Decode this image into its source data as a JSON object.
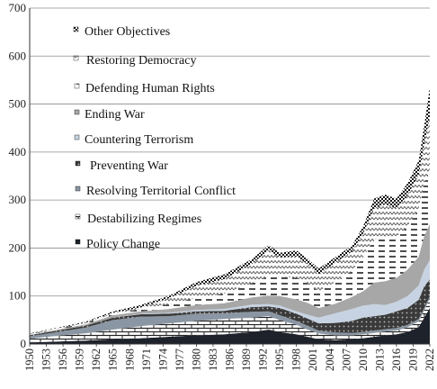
{
  "chart_data": {
    "type": "area",
    "stacked": true,
    "title": "",
    "xlabel": "",
    "ylabel": "",
    "ylim": [
      0,
      700
    ],
    "yticks": [
      0,
      100,
      200,
      300,
      400,
      500,
      600,
      700
    ],
    "xlim": [
      1950,
      2022
    ],
    "xticks": [
      1950,
      1953,
      1956,
      1959,
      1962,
      1965,
      1968,
      1971,
      1974,
      1977,
      1980,
      1983,
      1986,
      1989,
      1992,
      1995,
      1998,
      2001,
      2004,
      2007,
      2010,
      2013,
      2016,
      2019,
      2022
    ],
    "grid": "horizontal",
    "legend_position": "top-left inside",
    "x": [
      1950,
      1955,
      1960,
      1965,
      1970,
      1975,
      1980,
      1985,
      1990,
      1993,
      1995,
      1998,
      2000,
      2002,
      2005,
      2008,
      2010,
      2012,
      2014,
      2016,
      2018,
      2020,
      2021,
      2022
    ],
    "series": [
      {
        "name": "Policy Change",
        "color": "#1e222b",
        "pattern": "solid",
        "values": [
          3,
          5,
          7,
          10,
          12,
          15,
          18,
          20,
          25,
          30,
          25,
          20,
          15,
          10,
          8,
          10,
          12,
          15,
          18,
          20,
          25,
          35,
          55,
          75
        ]
      },
      {
        "name": "Destabilizing Regimes",
        "color": "#111111",
        "pattern": "brick",
        "values": [
          8,
          12,
          15,
          20,
          25,
          28,
          30,
          32,
          30,
          28,
          25,
          20,
          15,
          12,
          10,
          8,
          8,
          8,
          8,
          8,
          10,
          12,
          15,
          20
        ]
      },
      {
        "name": "Resolving Territorial Conflict",
        "color": "#8a96a3",
        "pattern": "solid",
        "values": [
          5,
          8,
          12,
          20,
          20,
          15,
          15,
          12,
          12,
          10,
          10,
          8,
          8,
          6,
          6,
          5,
          5,
          5,
          5,
          5,
          5,
          5,
          5,
          5
        ]
      },
      {
        "name": "Preventing War",
        "color": "#444444",
        "pattern": "dots",
        "values": [
          2,
          3,
          4,
          5,
          5,
          5,
          5,
          5,
          10,
          10,
          15,
          15,
          15,
          15,
          20,
          25,
          30,
          30,
          30,
          35,
          35,
          40,
          45,
          35
        ]
      },
      {
        "name": "Countering Terrorism",
        "color": "#c7d3e3",
        "pattern": "solid",
        "values": [
          0,
          0,
          0,
          0,
          1,
          2,
          3,
          4,
          5,
          5,
          5,
          5,
          8,
          12,
          20,
          25,
          25,
          25,
          20,
          20,
          25,
          30,
          35,
          40
        ]
      },
      {
        "name": "Ending War",
        "color": "#a7a7a7",
        "pattern": "solid",
        "values": [
          1,
          2,
          3,
          5,
          5,
          8,
          10,
          12,
          15,
          18,
          20,
          25,
          25,
          20,
          20,
          25,
          30,
          45,
          50,
          50,
          55,
          60,
          70,
          75
        ]
      },
      {
        "name": "Defending Human Rights",
        "color": "#222222",
        "pattern": "dashes",
        "values": [
          1,
          2,
          2,
          3,
          5,
          10,
          15,
          20,
          30,
          40,
          40,
          45,
          40,
          35,
          45,
          55,
          70,
          90,
          90,
          85,
          90,
          100,
          110,
          115
        ]
      },
      {
        "name": "Restoring Democracy",
        "color": "#777777",
        "pattern": "zigzag",
        "values": [
          1,
          1,
          1,
          2,
          3,
          12,
          25,
          30,
          40,
          55,
          40,
          45,
          40,
          35,
          40,
          40,
          50,
          65,
          70,
          60,
          65,
          70,
          80,
          110
        ]
      },
      {
        "name": "Other Objectives",
        "color": "#000000",
        "pattern": "checker",
        "values": [
          1,
          1,
          2,
          3,
          5,
          5,
          8,
          10,
          10,
          10,
          10,
          12,
          12,
          12,
          12,
          12,
          15,
          20,
          20,
          20,
          25,
          30,
          40,
          60
        ]
      }
    ]
  }
}
